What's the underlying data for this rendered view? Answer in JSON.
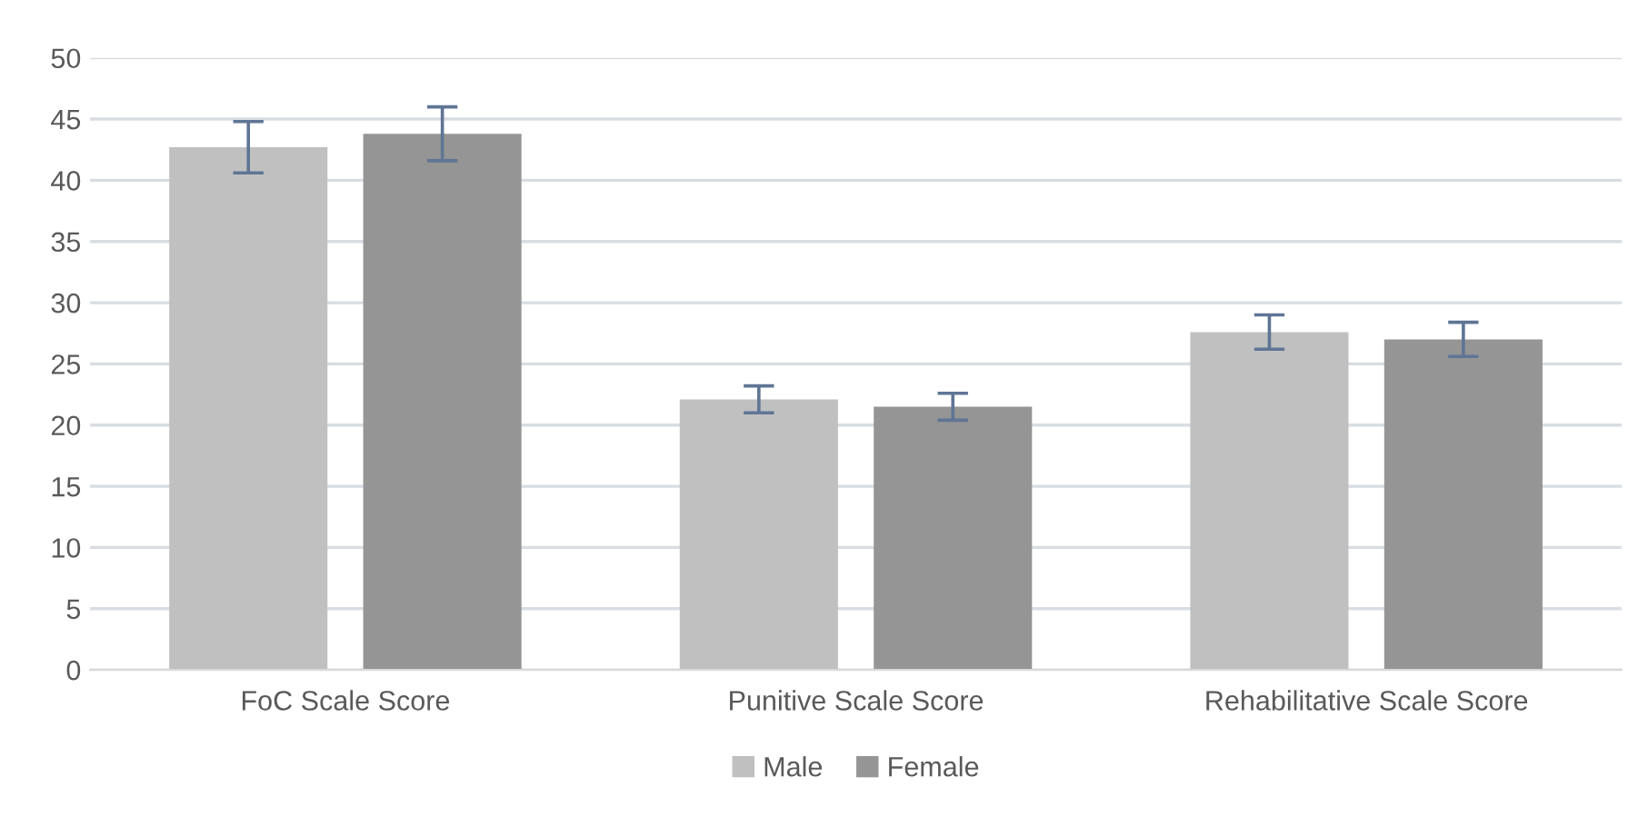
{
  "chart_data": {
    "type": "bar",
    "categories": [
      "FoC Scale Score",
      "Punitive Scale Score",
      "Rehabilitative Scale Score"
    ],
    "series": [
      {
        "name": "Male",
        "color": "#c0c0c0",
        "values": [
          42.7,
          22.1,
          27.6
        ],
        "errors": [
          2.1,
          1.1,
          1.4
        ]
      },
      {
        "name": "Female",
        "color": "#959595",
        "values": [
          43.8,
          21.5,
          27.0
        ],
        "errors": [
          2.2,
          1.1,
          1.4
        ]
      }
    ],
    "ylim": [
      0,
      50
    ],
    "yticks": [
      0,
      5,
      10,
      15,
      20,
      25,
      30,
      35,
      40,
      45,
      50
    ],
    "grid": "y",
    "legend": "bottom"
  }
}
